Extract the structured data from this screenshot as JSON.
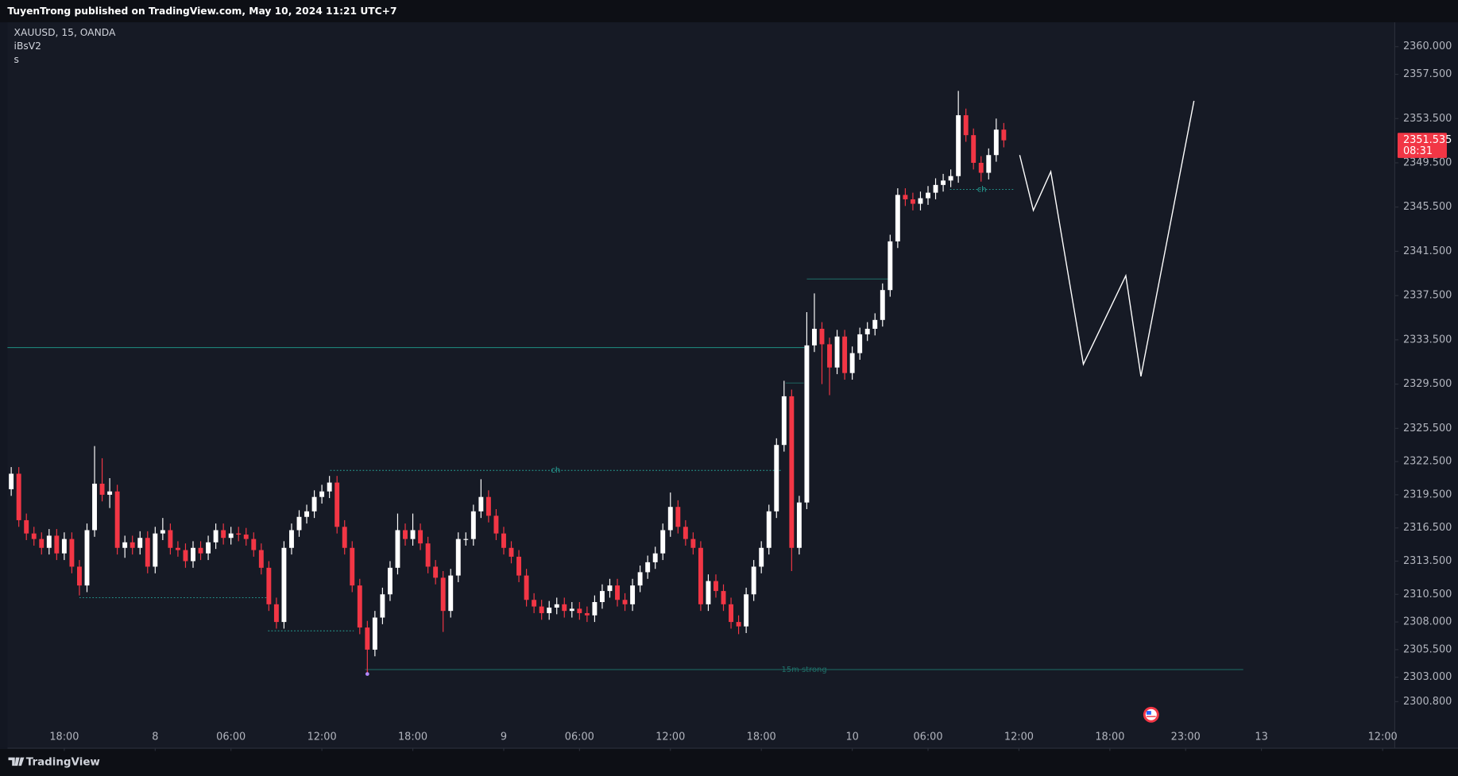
{
  "header": {
    "text": "TuyenTrong published on TradingView.com, May 10, 2024 11:21 UTC+7"
  },
  "footer": {
    "brand": "TradingView"
  },
  "chart_data": {
    "type": "candlestick",
    "title": "XAUUSD, 15, OANDA",
    "indicators": [
      "iBsV2",
      "s"
    ],
    "up_color": "#ffffff",
    "down_color": "#f23645",
    "grid": false,
    "countdown": "08:31",
    "xlim": [
      -0.5,
      182.6
    ],
    "xticks": [
      {
        "value": 7,
        "label": "18:00"
      },
      {
        "value": 19,
        "label": "8"
      },
      {
        "value": 29,
        "label": "06:00"
      },
      {
        "value": 41,
        "label": "12:00"
      },
      {
        "value": 53,
        "label": "18:00"
      },
      {
        "value": 65,
        "label": "9"
      },
      {
        "value": 75,
        "label": "06:00"
      },
      {
        "value": 87,
        "label": "12:00"
      },
      {
        "value": 99,
        "label": "18:00"
      },
      {
        "value": 111,
        "label": "10"
      },
      {
        "value": 121,
        "label": "06:00"
      },
      {
        "value": 133,
        "label": "12:00"
      },
      {
        "value": 145,
        "label": "18:00"
      },
      {
        "value": 155,
        "label": "23:00"
      },
      {
        "value": 165,
        "label": "13"
      },
      {
        "value": 181,
        "label": "12:00"
      }
    ],
    "ylim": [
      2296.6,
      2362.2
    ],
    "yticks": [
      {
        "value": 2360,
        "label": "2360.000"
      },
      {
        "value": 2357.5,
        "label": "2357.500"
      },
      {
        "value": 2353.5,
        "label": "2353.500"
      },
      {
        "value": 2349.5,
        "label": "2349.500"
      },
      {
        "value": 2345.5,
        "label": "2345.500"
      },
      {
        "value": 2341.5,
        "label": "2341.500"
      },
      {
        "value": 2337.5,
        "label": "2337.500"
      },
      {
        "value": 2333.5,
        "label": "2333.500"
      },
      {
        "value": 2329.5,
        "label": "2329.500"
      },
      {
        "value": 2325.5,
        "label": "2325.500"
      },
      {
        "value": 2322.5,
        "label": "2322.500"
      },
      {
        "value": 2319.5,
        "label": "2319.500"
      },
      {
        "value": 2316.5,
        "label": "2316.500"
      },
      {
        "value": 2313.5,
        "label": "2313.500"
      },
      {
        "value": 2310.5,
        "label": "2310.500"
      },
      {
        "value": 2308,
        "label": "2308.000"
      },
      {
        "value": 2305.5,
        "label": "2305.500"
      },
      {
        "value": 2303,
        "label": "2303.000"
      },
      {
        "value": 2300.8,
        "label": "2300.800"
      }
    ],
    "open": [
      2320.0,
      2321.4,
      2317.2,
      2316.0,
      2315.5,
      2314.7,
      2315.8,
      2314.2,
      2315.5,
      2313.0,
      2311.3,
      2316.3,
      2320.5,
      2319.5,
      2319.8,
      2314.7,
      2315.2,
      2314.7,
      2315.6,
      2313.0,
      2316.0,
      2316.3,
      2314.7,
      2314.5,
      2313.5,
      2314.7,
      2314.2,
      2315.2,
      2316.3,
      2315.6,
      2316.0,
      2315.9,
      2315.5,
      2314.5,
      2312.9,
      2309.6,
      2308.0,
      2314.7,
      2316.3,
      2317.5,
      2318.0,
      2319.3,
      2319.8,
      2320.6,
      2316.6,
      2314.7,
      2311.3,
      2307.5,
      2305.5,
      2308.4,
      2310.5,
      2312.9,
      2316.3,
      2315.5,
      2316.3,
      2315.1,
      2313.0,
      2312.0,
      2309.0,
      2312.2,
      2315.5,
      2315.5,
      2318.0,
      2319.3,
      2317.6,
      2316.0,
      2314.7,
      2313.9,
      2312.2,
      2310.0,
      2309.4,
      2308.8,
      2309.3,
      2309.6,
      2309.0,
      2309.2,
      2308.8,
      2308.6,
      2309.8,
      2310.8,
      2311.3,
      2310.0,
      2309.6,
      2311.3,
      2312.5,
      2313.4,
      2314.2,
      2316.3,
      2318.4,
      2316.6,
      2315.5,
      2314.7,
      2309.6,
      2311.7,
      2310.8,
      2309.6,
      2308.0,
      2307.6,
      2310.5,
      2313.0,
      2314.7,
      2318.0,
      2324.0,
      2328.4,
      2314.7,
      2318.8,
      2333.0,
      2334.5,
      2333.1,
      2331.0,
      2333.8,
      2330.5,
      2332.3,
      2334.0,
      2334.5,
      2335.3,
      2338.0,
      2342.4,
      2346.6,
      2346.2,
      2345.8,
      2346.3,
      2346.8,
      2347.5,
      2347.9,
      2348.3,
      2353.8,
      2352.0,
      2349.5,
      2348.6,
      2350.2,
      2352.5
    ],
    "high": [
      2322.0,
      2322.0,
      2317.8,
      2316.6,
      2316.1,
      2316.4,
      2316.4,
      2316.1,
      2316.1,
      2313.6,
      2316.9,
      2323.9,
      2322.8,
      2321.0,
      2320.4,
      2315.8,
      2315.8,
      2316.2,
      2316.2,
      2316.6,
      2317.4,
      2316.9,
      2315.3,
      2315.1,
      2315.3,
      2315.3,
      2315.8,
      2316.9,
      2316.9,
      2316.6,
      2316.6,
      2316.5,
      2316.1,
      2315.1,
      2313.5,
      2310.2,
      2315.3,
      2316.9,
      2318.1,
      2318.6,
      2319.9,
      2320.4,
      2321.2,
      2321.2,
      2317.2,
      2315.3,
      2311.9,
      2308.1,
      2309.0,
      2311.1,
      2313.5,
      2317.8,
      2316.9,
      2317.8,
      2316.9,
      2315.7,
      2313.6,
      2312.6,
      2312.8,
      2316.1,
      2316.1,
      2318.6,
      2320.9,
      2319.9,
      2318.2,
      2316.6,
      2315.3,
      2314.5,
      2312.8,
      2310.6,
      2310.0,
      2309.9,
      2310.2,
      2310.2,
      2309.8,
      2309.8,
      2309.4,
      2310.4,
      2311.4,
      2311.9,
      2311.9,
      2310.6,
      2311.9,
      2313.1,
      2314.0,
      2314.8,
      2316.9,
      2319.7,
      2319.0,
      2317.2,
      2316.1,
      2315.3,
      2312.3,
      2312.3,
      2311.4,
      2310.2,
      2308.6,
      2311.1,
      2313.6,
      2315.3,
      2318.6,
      2324.6,
      2329.8,
      2329.0,
      2319.4,
      2336.0,
      2337.7,
      2335.1,
      2333.7,
      2334.4,
      2334.4,
      2332.9,
      2334.6,
      2335.1,
      2335.9,
      2338.6,
      2343.0,
      2347.2,
      2347.2,
      2346.8,
      2346.9,
      2347.4,
      2348.1,
      2348.5,
      2348.9,
      2356.0,
      2354.4,
      2352.6,
      2350.1,
      2350.8,
      2353.5,
      2353.1
    ],
    "low": [
      2319.4,
      2316.6,
      2315.4,
      2314.9,
      2314.1,
      2314.1,
      2313.6,
      2313.6,
      2312.4,
      2310.4,
      2310.7,
      2315.7,
      2318.9,
      2318.3,
      2314.1,
      2313.8,
      2314.1,
      2314.1,
      2312.4,
      2312.4,
      2315.4,
      2314.1,
      2313.9,
      2312.9,
      2312.9,
      2313.6,
      2313.6,
      2314.6,
      2315.0,
      2315.0,
      2315.3,
      2314.9,
      2313.9,
      2312.3,
      2309.0,
      2307.4,
      2307.4,
      2314.1,
      2315.7,
      2316.9,
      2317.4,
      2318.7,
      2319.2,
      2316.0,
      2314.1,
      2310.7,
      2306.9,
      2303.3,
      2304.9,
      2307.8,
      2309.9,
      2312.3,
      2314.9,
      2314.9,
      2314.5,
      2312.4,
      2311.4,
      2307.1,
      2308.4,
      2311.6,
      2314.9,
      2314.9,
      2317.4,
      2317.0,
      2315.4,
      2314.1,
      2313.3,
      2311.6,
      2309.4,
      2308.8,
      2308.2,
      2308.2,
      2308.7,
      2308.4,
      2308.4,
      2308.2,
      2308.0,
      2308.0,
      2309.2,
      2310.2,
      2309.4,
      2309.0,
      2309.0,
      2310.7,
      2311.9,
      2312.8,
      2313.6,
      2315.7,
      2316.0,
      2314.9,
      2314.1,
      2309.0,
      2309.0,
      2310.2,
      2309.0,
      2307.4,
      2306.9,
      2307.0,
      2309.9,
      2312.4,
      2314.1,
      2317.4,
      2323.4,
      2312.6,
      2314.1,
      2318.2,
      2332.4,
      2329.5,
      2328.5,
      2330.4,
      2329.9,
      2329.9,
      2331.7,
      2333.4,
      2333.9,
      2334.7,
      2337.4,
      2341.8,
      2345.6,
      2345.2,
      2345.2,
      2345.7,
      2346.2,
      2346.9,
      2347.3,
      2347.7,
      2351.4,
      2348.9,
      2347.8,
      2348.0,
      2349.6,
      2350.9
    ],
    "close": [
      2321.4,
      2317.2,
      2316.0,
      2315.5,
      2314.7,
      2315.8,
      2314.2,
      2315.5,
      2313.0,
      2311.3,
      2316.3,
      2320.5,
      2319.5,
      2319.8,
      2314.7,
      2315.2,
      2314.7,
      2315.6,
      2313.0,
      2316.0,
      2316.3,
      2314.7,
      2314.5,
      2313.5,
      2314.7,
      2314.2,
      2315.2,
      2316.3,
      2315.6,
      2316.0,
      2315.9,
      2315.5,
      2314.5,
      2312.9,
      2309.6,
      2308.0,
      2314.7,
      2316.3,
      2317.5,
      2318.0,
      2319.3,
      2319.8,
      2320.6,
      2316.6,
      2314.7,
      2311.3,
      2307.5,
      2305.5,
      2308.4,
      2310.5,
      2312.9,
      2316.3,
      2315.5,
      2316.3,
      2315.1,
      2313.0,
      2312.0,
      2309.0,
      2312.2,
      2315.5,
      2315.5,
      2318.0,
      2319.3,
      2317.6,
      2316.0,
      2314.7,
      2313.9,
      2312.2,
      2310.0,
      2309.4,
      2308.8,
      2309.3,
      2309.6,
      2309.0,
      2309.2,
      2308.8,
      2308.6,
      2309.8,
      2310.8,
      2311.3,
      2310.0,
      2309.6,
      2311.3,
      2312.5,
      2313.4,
      2314.2,
      2316.3,
      2318.4,
      2316.6,
      2315.5,
      2314.7,
      2309.6,
      2311.7,
      2310.8,
      2309.6,
      2308.0,
      2307.6,
      2310.5,
      2313.0,
      2314.7,
      2318.0,
      2324.0,
      2328.4,
      2314.7,
      2318.8,
      2333.0,
      2334.5,
      2333.1,
      2331.0,
      2333.8,
      2330.5,
      2332.3,
      2334.0,
      2334.5,
      2335.3,
      2338.0,
      2342.4,
      2346.6,
      2346.2,
      2345.8,
      2346.3,
      2346.8,
      2347.5,
      2347.9,
      2348.3,
      2353.8,
      2352.0,
      2349.5,
      2348.6,
      2350.2,
      2352.5,
      2351.535
    ],
    "levels": [
      {
        "price": 2332.8,
        "from": -0.5,
        "to": 105.3,
        "style": "solid",
        "color": "#1f8f83"
      },
      {
        "price": 2321.7,
        "from": 42.1,
        "to": 101.6,
        "style": "dotted",
        "color": "#26a69a",
        "label": "ch"
      },
      {
        "price": 2310.2,
        "from": 9,
        "to": 34.1,
        "style": "dotted",
        "color": "#26a69a"
      },
      {
        "price": 2307.2,
        "from": 33.9,
        "to": 45.2,
        "style": "dotted",
        "color": "#26a69a"
      },
      {
        "price": 2303.7,
        "from": 46.7,
        "to": 162.6,
        "style": "solid",
        "color": "#1f6f68",
        "label": "15m strong"
      },
      {
        "price": 2347.1,
        "from": 123.9,
        "to": 132.3,
        "style": "dotted",
        "color": "#26a69a",
        "label": "ch"
      },
      {
        "price": 2339.0,
        "from": 105,
        "to": 115.7,
        "style": "solid",
        "color": "#1f6f68"
      },
      {
        "price": 2329.6,
        "from": 102.2,
        "to": 104.6,
        "style": "solid",
        "color": "#1f6f68"
      }
    ],
    "projection": {
      "color": "#ffffff",
      "x": [
        133.1,
        134.9,
        137.2,
        141.5,
        147.1,
        149.1,
        156.1
      ],
      "values": [
        2350.2,
        2345.2,
        2348.7,
        2331.3,
        2339.3,
        2330.2,
        2355.1
      ]
    }
  }
}
